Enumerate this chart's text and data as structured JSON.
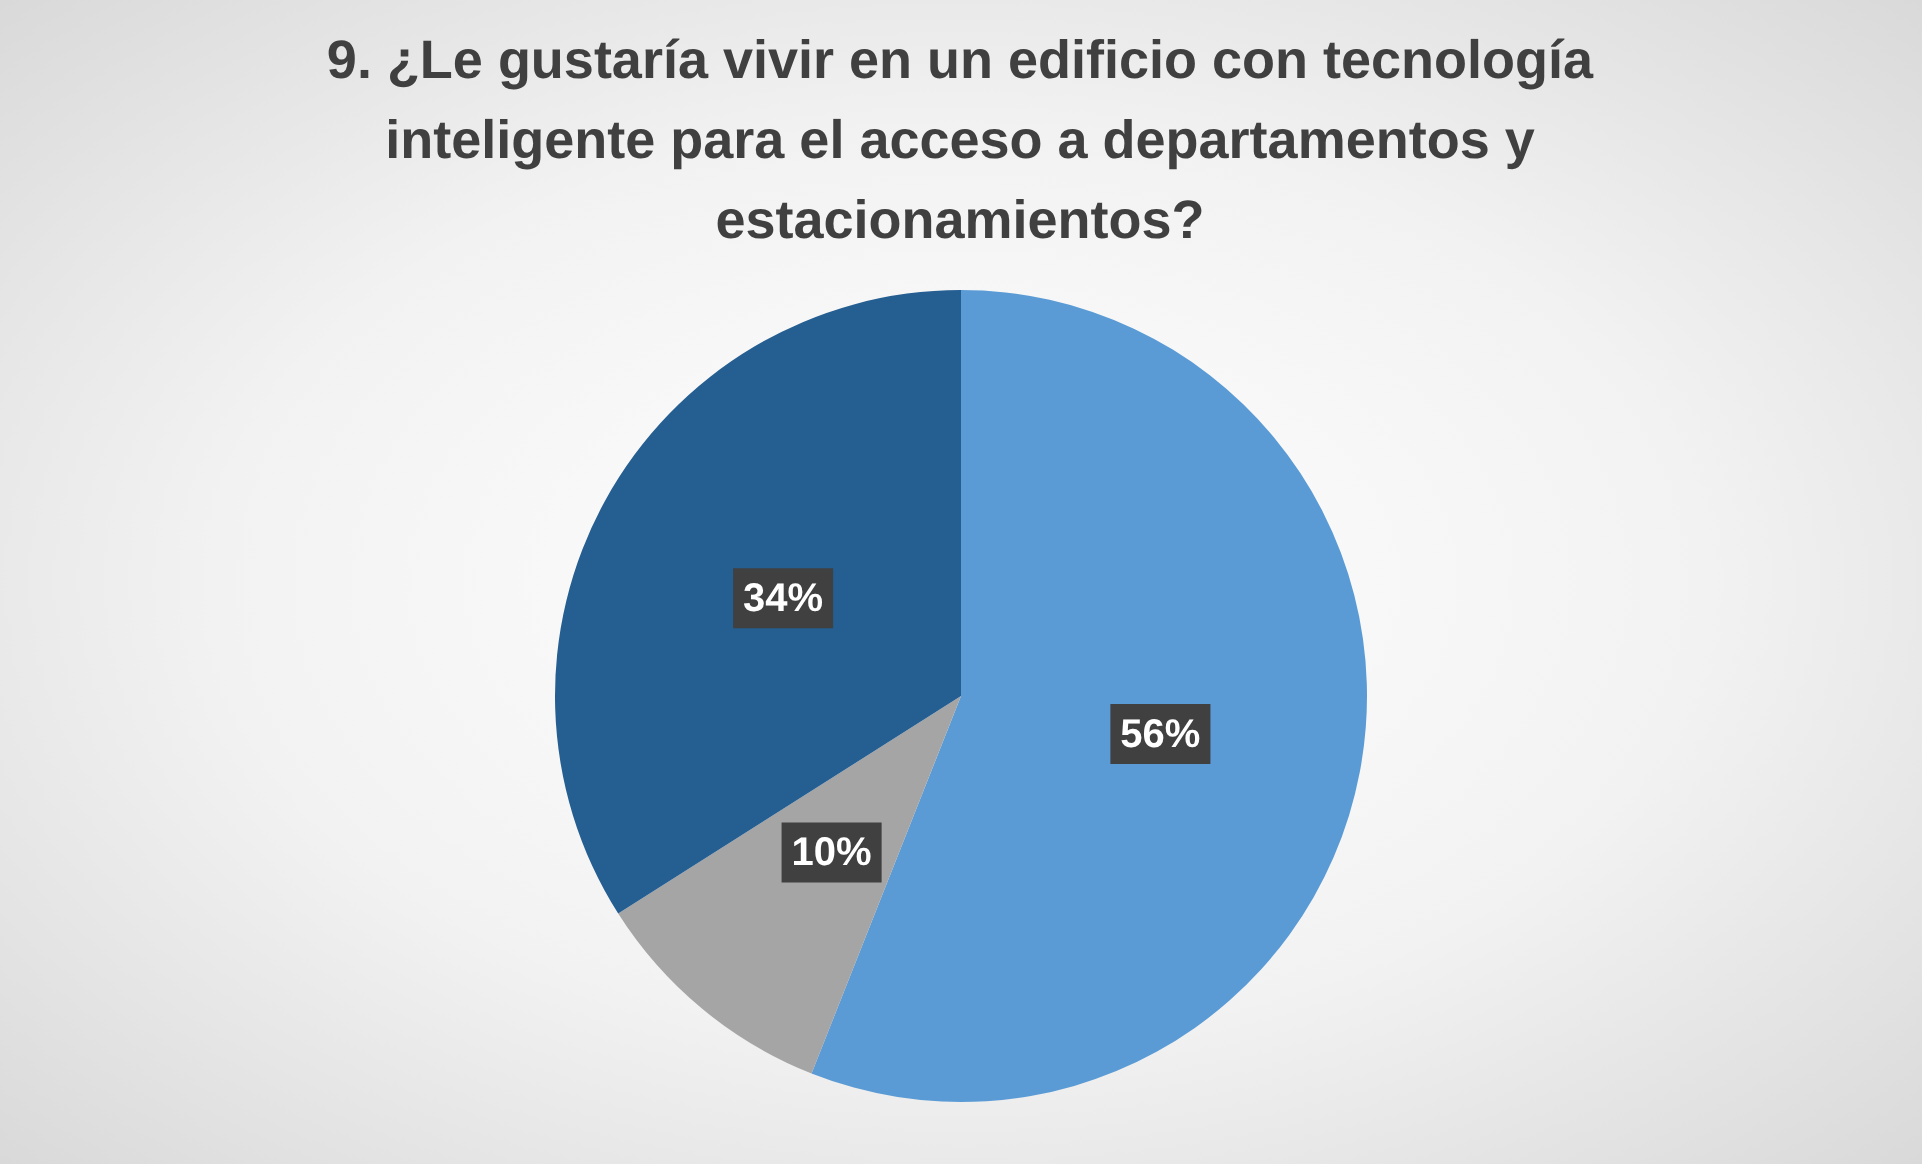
{
  "chart_data": {
    "type": "pie",
    "title": "9. ¿Le gustaría vivir en un edificio con tecnología inteligente para el acceso a departamentos y estacionamientos?",
    "categories": [
      null,
      null,
      null
    ],
    "values": [
      56,
      10,
      34
    ],
    "colors": [
      "#5b9bd5",
      "#a5a5a5",
      "#255e91"
    ],
    "value_labels": [
      "56%",
      "10%",
      "34%"
    ],
    "legend": false
  }
}
